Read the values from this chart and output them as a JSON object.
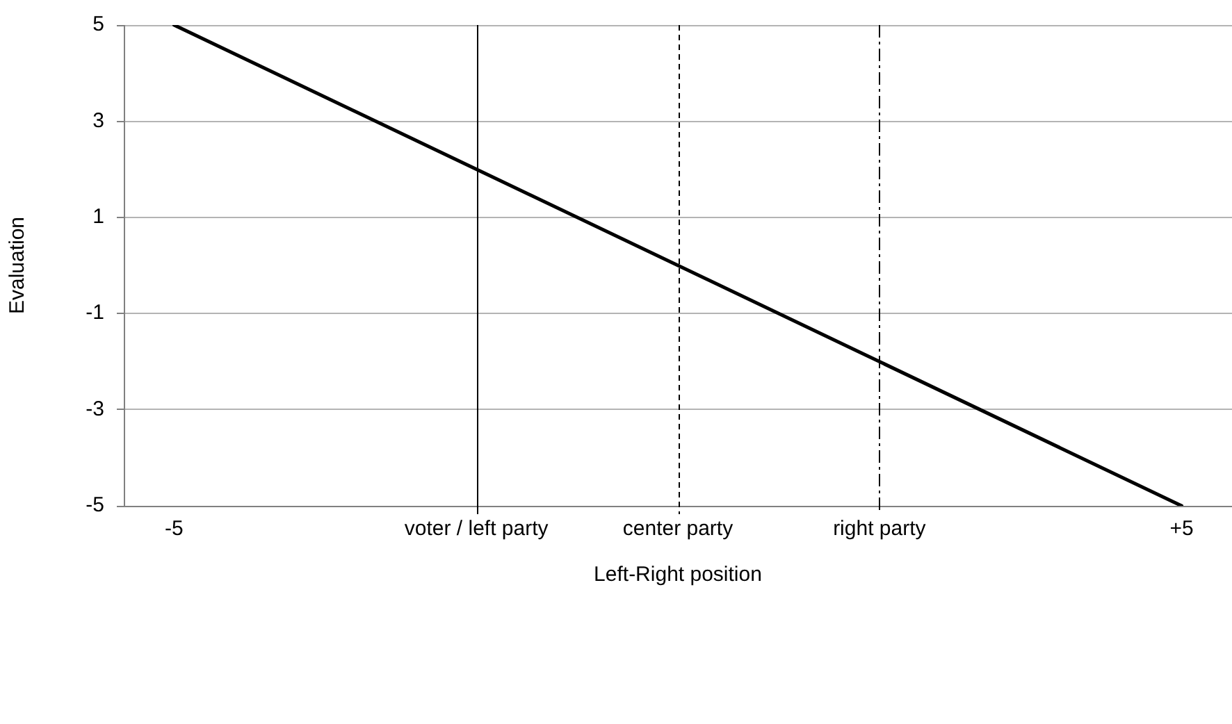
{
  "chart_data": {
    "type": "line",
    "x": [
      -5,
      5
    ],
    "values": [
      5,
      -5
    ],
    "color": "#000000",
    "xlabel": "Left-Right position",
    "ylabel": "Evaluation",
    "xlim": [
      -5.5,
      5.5
    ],
    "xticks": [
      -5,
      {
        "value": -2,
        "label": "voter / left party"
      },
      {
        "value": 0,
        "label": "center party"
      },
      {
        "value": 2,
        "label": "right party"
      },
      {
        "value": 5,
        "label": "+5"
      }
    ],
    "ylim": [
      -5,
      5
    ],
    "yticks": [
      -5,
      -3,
      -1,
      1,
      3,
      5
    ],
    "grid": "y",
    "ref_lines": [
      {
        "axis": "x",
        "value": -2,
        "line_style": "solid",
        "color": "#000000"
      },
      {
        "axis": "x",
        "value": 0,
        "line_style": "dashed",
        "color": "#000000"
      },
      {
        "axis": "x",
        "value": 2,
        "line_style": "dashdot",
        "color": "#000000"
      }
    ]
  }
}
